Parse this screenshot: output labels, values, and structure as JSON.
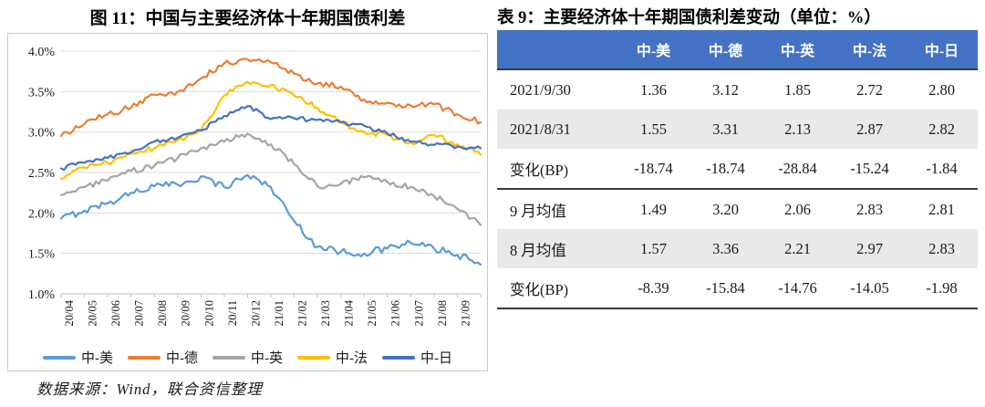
{
  "figure": {
    "title": "图 11：中国与主要经济体十年期国债利差",
    "source_note": "数据来源：Wind，联合资信整理"
  },
  "chart_data": {
    "type": "line",
    "title": "图 11：中国与主要经济体十年期国债利差",
    "x_tick_labels": [
      "20/04",
      "20/05",
      "20/06",
      "20/07",
      "20/08",
      "20/09",
      "20/10",
      "20/11",
      "20/12",
      "21/01",
      "21/02",
      "21/03",
      "21/04",
      "21/05",
      "21/06",
      "21/07",
      "21/08",
      "21/09"
    ],
    "ytick_labels": [
      "4.0%",
      "3.5%",
      "3.0%",
      "2.5%",
      "2.0%",
      "1.5%",
      "1.0%"
    ],
    "ytick_values": [
      4.0,
      3.5,
      3.0,
      2.5,
      2.0,
      1.5,
      1.0
    ],
    "ylim": [
      1.0,
      4.0
    ],
    "grid": true,
    "legend_position": "bottom",
    "values_note": "daily series approximated by monthly values at each x tick plus the period-end value (2021/9/30)",
    "grid_color": "#d9d9d9",
    "axis_color": "#bfbfbf",
    "series": [
      {
        "name": "中-美",
        "color": "#5B9BD5",
        "noise_amp": 0.045,
        "values": [
          1.93,
          2.03,
          2.12,
          2.25,
          2.33,
          2.35,
          2.45,
          2.32,
          2.47,
          2.32,
          1.9,
          1.58,
          1.52,
          1.5,
          1.56,
          1.63,
          1.56,
          1.48,
          1.36
        ]
      },
      {
        "name": "中-德",
        "color": "#ED7D31",
        "noise_amp": 0.038,
        "values": [
          2.95,
          3.1,
          3.22,
          3.3,
          3.46,
          3.5,
          3.66,
          3.85,
          3.9,
          3.86,
          3.72,
          3.6,
          3.56,
          3.4,
          3.36,
          3.33,
          3.34,
          3.22,
          3.12
        ]
      },
      {
        "name": "中-英",
        "color": "#A5A5A5",
        "noise_amp": 0.035,
        "values": [
          2.22,
          2.32,
          2.4,
          2.52,
          2.58,
          2.68,
          2.8,
          2.88,
          2.98,
          2.85,
          2.6,
          2.33,
          2.36,
          2.44,
          2.38,
          2.32,
          2.21,
          2.05,
          1.85
        ]
      },
      {
        "name": "中-法",
        "color": "#FFC000",
        "noise_amp": 0.035,
        "values": [
          2.42,
          2.56,
          2.62,
          2.73,
          2.8,
          2.9,
          3.02,
          3.45,
          3.62,
          3.58,
          3.45,
          3.3,
          3.12,
          3.0,
          2.96,
          2.87,
          2.96,
          2.85,
          2.72
        ]
      },
      {
        "name": "中-日",
        "color": "#4472C4",
        "noise_amp": 0.028,
        "values": [
          2.55,
          2.62,
          2.68,
          2.75,
          2.88,
          2.93,
          3.02,
          3.2,
          3.32,
          3.16,
          3.17,
          3.15,
          3.12,
          3.08,
          2.98,
          2.88,
          2.84,
          2.82,
          2.8
        ]
      }
    ]
  },
  "table": {
    "title": "表 9：主要经济体十年期国债利差变动（单位：%）",
    "header_bg": "#4472C4",
    "stripe_bg": "#E9E9E9",
    "columns": [
      "",
      "中-美",
      "中-德",
      "中-英",
      "中-法",
      "中-日"
    ],
    "rows": [
      {
        "label": "2021/9/30",
        "values": [
          "1.36",
          "3.12",
          "1.85",
          "2.72",
          "2.80"
        ],
        "striped": false,
        "section_end": false
      },
      {
        "label": "2021/8/31",
        "values": [
          "1.55",
          "3.31",
          "2.13",
          "2.87",
          "2.82"
        ],
        "striped": true,
        "section_end": false
      },
      {
        "label": "变化(BP)",
        "values": [
          "-18.74",
          "-18.74",
          "-28.84",
          "-15.24",
          "-1.84"
        ],
        "striped": false,
        "section_end": true
      },
      {
        "label": "9 月均值",
        "values": [
          "1.49",
          "3.20",
          "2.06",
          "2.83",
          "2.81"
        ],
        "striped": false,
        "section_end": false
      },
      {
        "label": "8 月均值",
        "values": [
          "1.57",
          "3.36",
          "2.21",
          "2.97",
          "2.83"
        ],
        "striped": true,
        "section_end": false
      },
      {
        "label": "变化(BP)",
        "values": [
          "-8.39",
          "-15.84",
          "-14.76",
          "-14.05",
          "-1.98"
        ],
        "striped": false,
        "section_end": true
      }
    ]
  }
}
